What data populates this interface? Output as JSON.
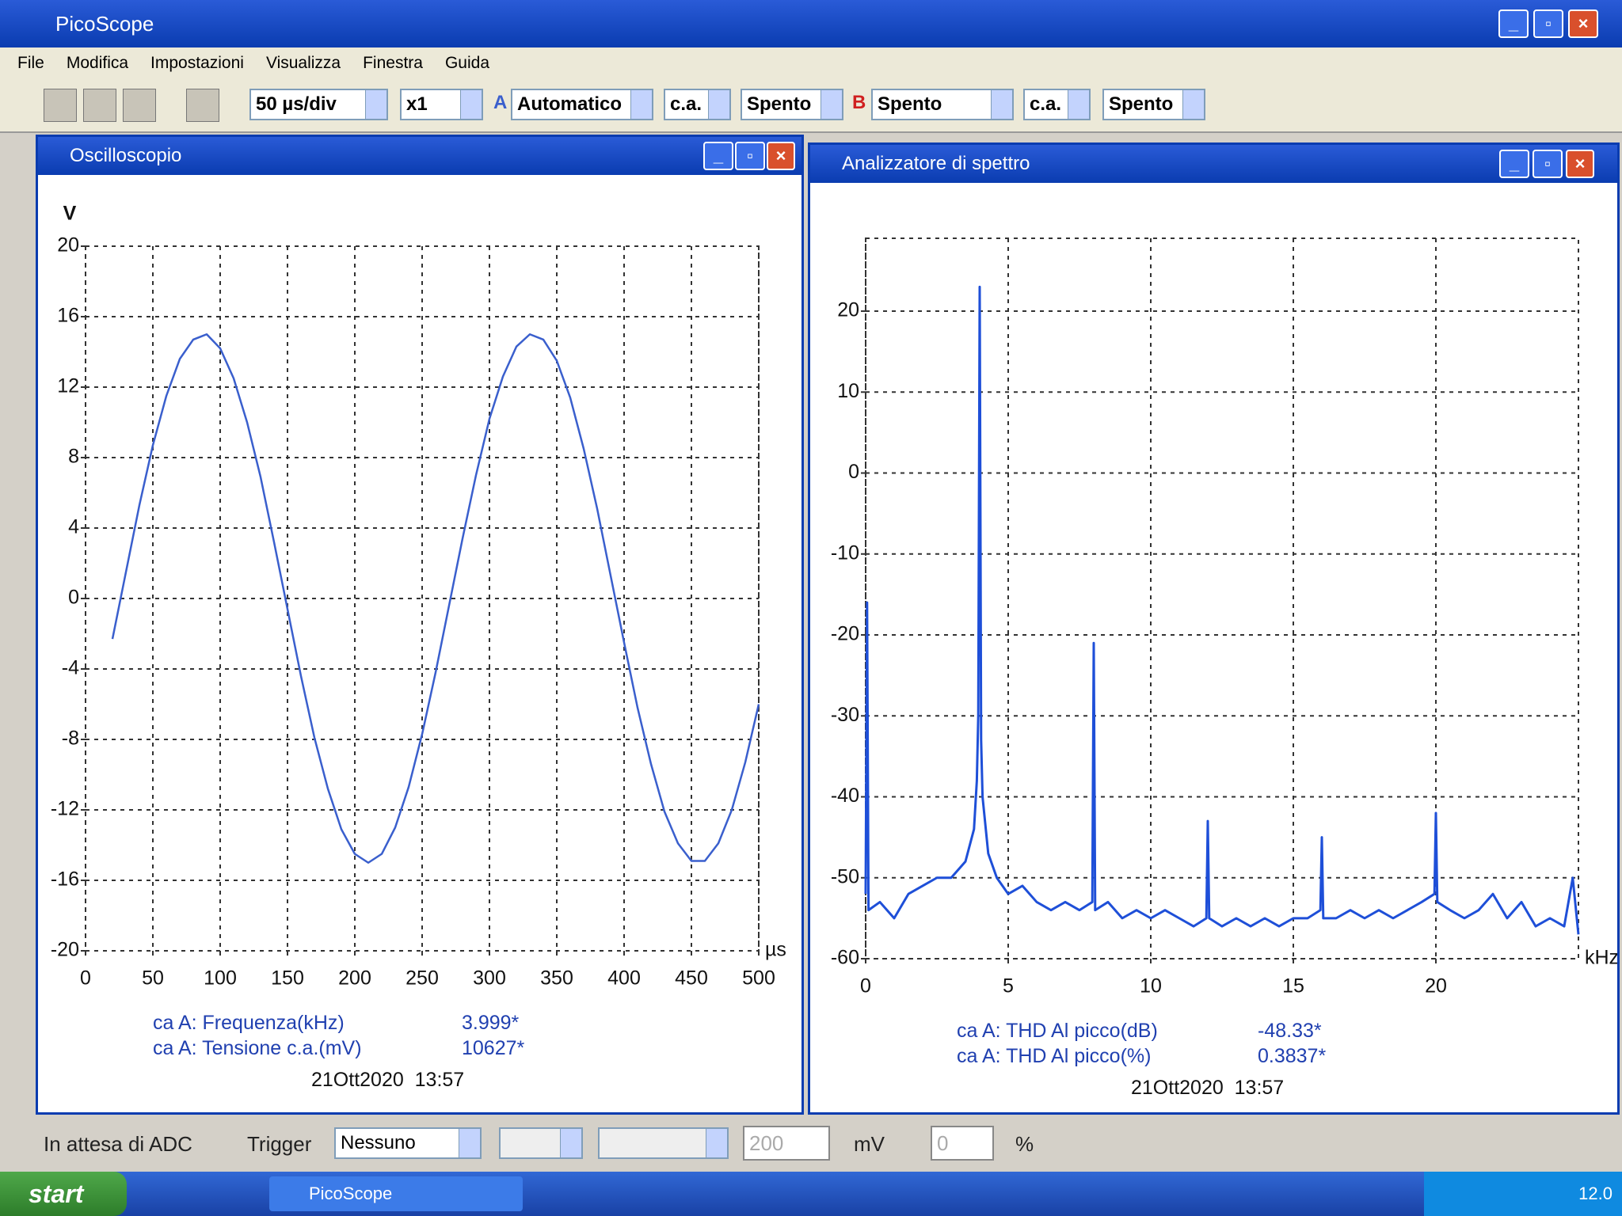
{
  "title": "PicoScope",
  "menu": [
    "File",
    "Modifica",
    "Impostazioni",
    "Visualizza",
    "Finestra",
    "Guida"
  ],
  "toolbar": {
    "timebase": "50 µs/div",
    "multiplier": "x1",
    "channel_a": "A",
    "trigger_mode": "Automatico",
    "coupling_a": "c.a.",
    "range_a": "Spento",
    "channel_b": "B",
    "range_b": "Spento",
    "coupling_b": "c.a.",
    "range_b2": "Spento"
  },
  "windows": [
    {
      "title": "Oscilloscopio",
      "measurements": [
        {
          "label": "ca A: Frequenza(kHz)",
          "value": "3.999*"
        },
        {
          "label": "ca A: Tensione c.a.(mV)",
          "value": "10627*"
        }
      ],
      "timestamp": "21Ott2020  13:57"
    },
    {
      "title": "Analizzatore di spettro",
      "measurements": [
        {
          "label": "ca A: THD Al picco(dB)",
          "value": "-48.33*"
        },
        {
          "label": "ca A: THD Al picco(%)",
          "value": "0.3837*"
        }
      ],
      "timestamp": "21Ott2020  13:57"
    }
  ],
  "chart_data": [
    {
      "type": "line",
      "ylabel": "V",
      "xlabel": "µs",
      "xlim": [
        0,
        500
      ],
      "ylim": [
        -20,
        20
      ],
      "xticks": [
        0,
        50,
        100,
        150,
        200,
        250,
        300,
        350,
        400,
        450,
        500
      ],
      "yticks": [
        -20,
        -16,
        -12,
        -8,
        -4,
        0,
        4,
        8,
        12,
        16,
        20
      ],
      "grid": true,
      "series": [
        {
          "color": "#3a5fcd",
          "x": [
            20,
            30,
            40,
            50,
            60,
            70,
            80,
            90,
            100,
            110,
            120,
            130,
            140,
            150,
            160,
            170,
            180,
            190,
            200,
            210,
            220,
            230,
            240,
            250,
            260,
            270,
            280,
            290,
            300,
            310,
            320,
            330,
            340,
            350,
            360,
            370,
            380,
            390,
            400,
            410,
            420,
            430,
            440,
            450,
            460,
            470,
            480,
            490,
            500
          ],
          "values": [
            -2.3,
            1.5,
            5.3,
            8.7,
            11.5,
            13.6,
            14.7,
            15.0,
            14.2,
            12.5,
            10.0,
            6.9,
            3.2,
            -0.6,
            -4.4,
            -7.9,
            -10.8,
            -13.1,
            -14.5,
            -15.0,
            -14.5,
            -13.0,
            -10.7,
            -7.7,
            -4.2,
            -0.4,
            3.4,
            7.0,
            10.2,
            12.6,
            14.3,
            15.0,
            14.7,
            13.5,
            11.4,
            8.5,
            5.1,
            1.3,
            -2.5,
            -6.2,
            -9.4,
            -12.1,
            -13.9,
            -14.9,
            -14.9,
            -13.9,
            -12.0,
            -9.3,
            -6.0
          ]
        }
      ]
    },
    {
      "type": "line",
      "xlabel": "kHz",
      "xlim": [
        0,
        25
      ],
      "ylim": [
        -60,
        29
      ],
      "xticks": [
        0,
        5,
        10,
        15,
        20
      ],
      "yticks": [
        -60,
        -50,
        -40,
        -30,
        -20,
        -10,
        0,
        10,
        20
      ],
      "grid": true,
      "series": [
        {
          "color": "#1e4fd8",
          "x": [
            0,
            0.05,
            0.1,
            0.5,
            1.0,
            1.5,
            2.0,
            2.5,
            3.0,
            3.5,
            3.8,
            3.9,
            3.95,
            4.0,
            4.05,
            4.1,
            4.3,
            4.6,
            5.0,
            5.5,
            6.0,
            6.5,
            7.0,
            7.5,
            7.95,
            8.0,
            8.05,
            8.5,
            9.0,
            9.5,
            10.0,
            10.5,
            11.0,
            11.5,
            11.95,
            12.0,
            12.05,
            12.5,
            13.0,
            13.5,
            14.0,
            14.5,
            15.0,
            15.5,
            15.95,
            16.0,
            16.05,
            16.5,
            17.0,
            17.5,
            18.0,
            18.5,
            19.0,
            19.5,
            19.95,
            20.0,
            20.05,
            20.5,
            21.0,
            21.5,
            22.0,
            22.5,
            23.0,
            23.5,
            24.0,
            24.5,
            24.8,
            25.0
          ],
          "values": [
            -52,
            -16,
            -54,
            -53,
            -55,
            -52,
            -51,
            -50,
            -50,
            -48,
            -44,
            -38,
            -30,
            23,
            -33,
            -40,
            -47,
            -50,
            -52,
            -51,
            -53,
            -54,
            -53,
            -54,
            -53,
            -21,
            -54,
            -53,
            -55,
            -54,
            -55,
            -54,
            -55,
            -56,
            -55,
            -43,
            -55,
            -56,
            -55,
            -56,
            -55,
            -56,
            -55,
            -55,
            -54,
            -45,
            -55,
            -55,
            -54,
            -55,
            -54,
            -55,
            -54,
            -53,
            -52,
            -42,
            -53,
            -54,
            -55,
            -54,
            -52,
            -55,
            -53,
            -56,
            -55,
            -56,
            -50,
            -57
          ]
        }
      ]
    }
  ],
  "status": {
    "state": "In attesa di ADC",
    "trigger_label": "Trigger",
    "trigger": "Nessuno",
    "level": "200",
    "level_unit": "mV",
    "delay": "0",
    "delay_unit": "%"
  },
  "taskbar": {
    "start": "start",
    "task": "PicoScope",
    "clock": "12.0"
  }
}
